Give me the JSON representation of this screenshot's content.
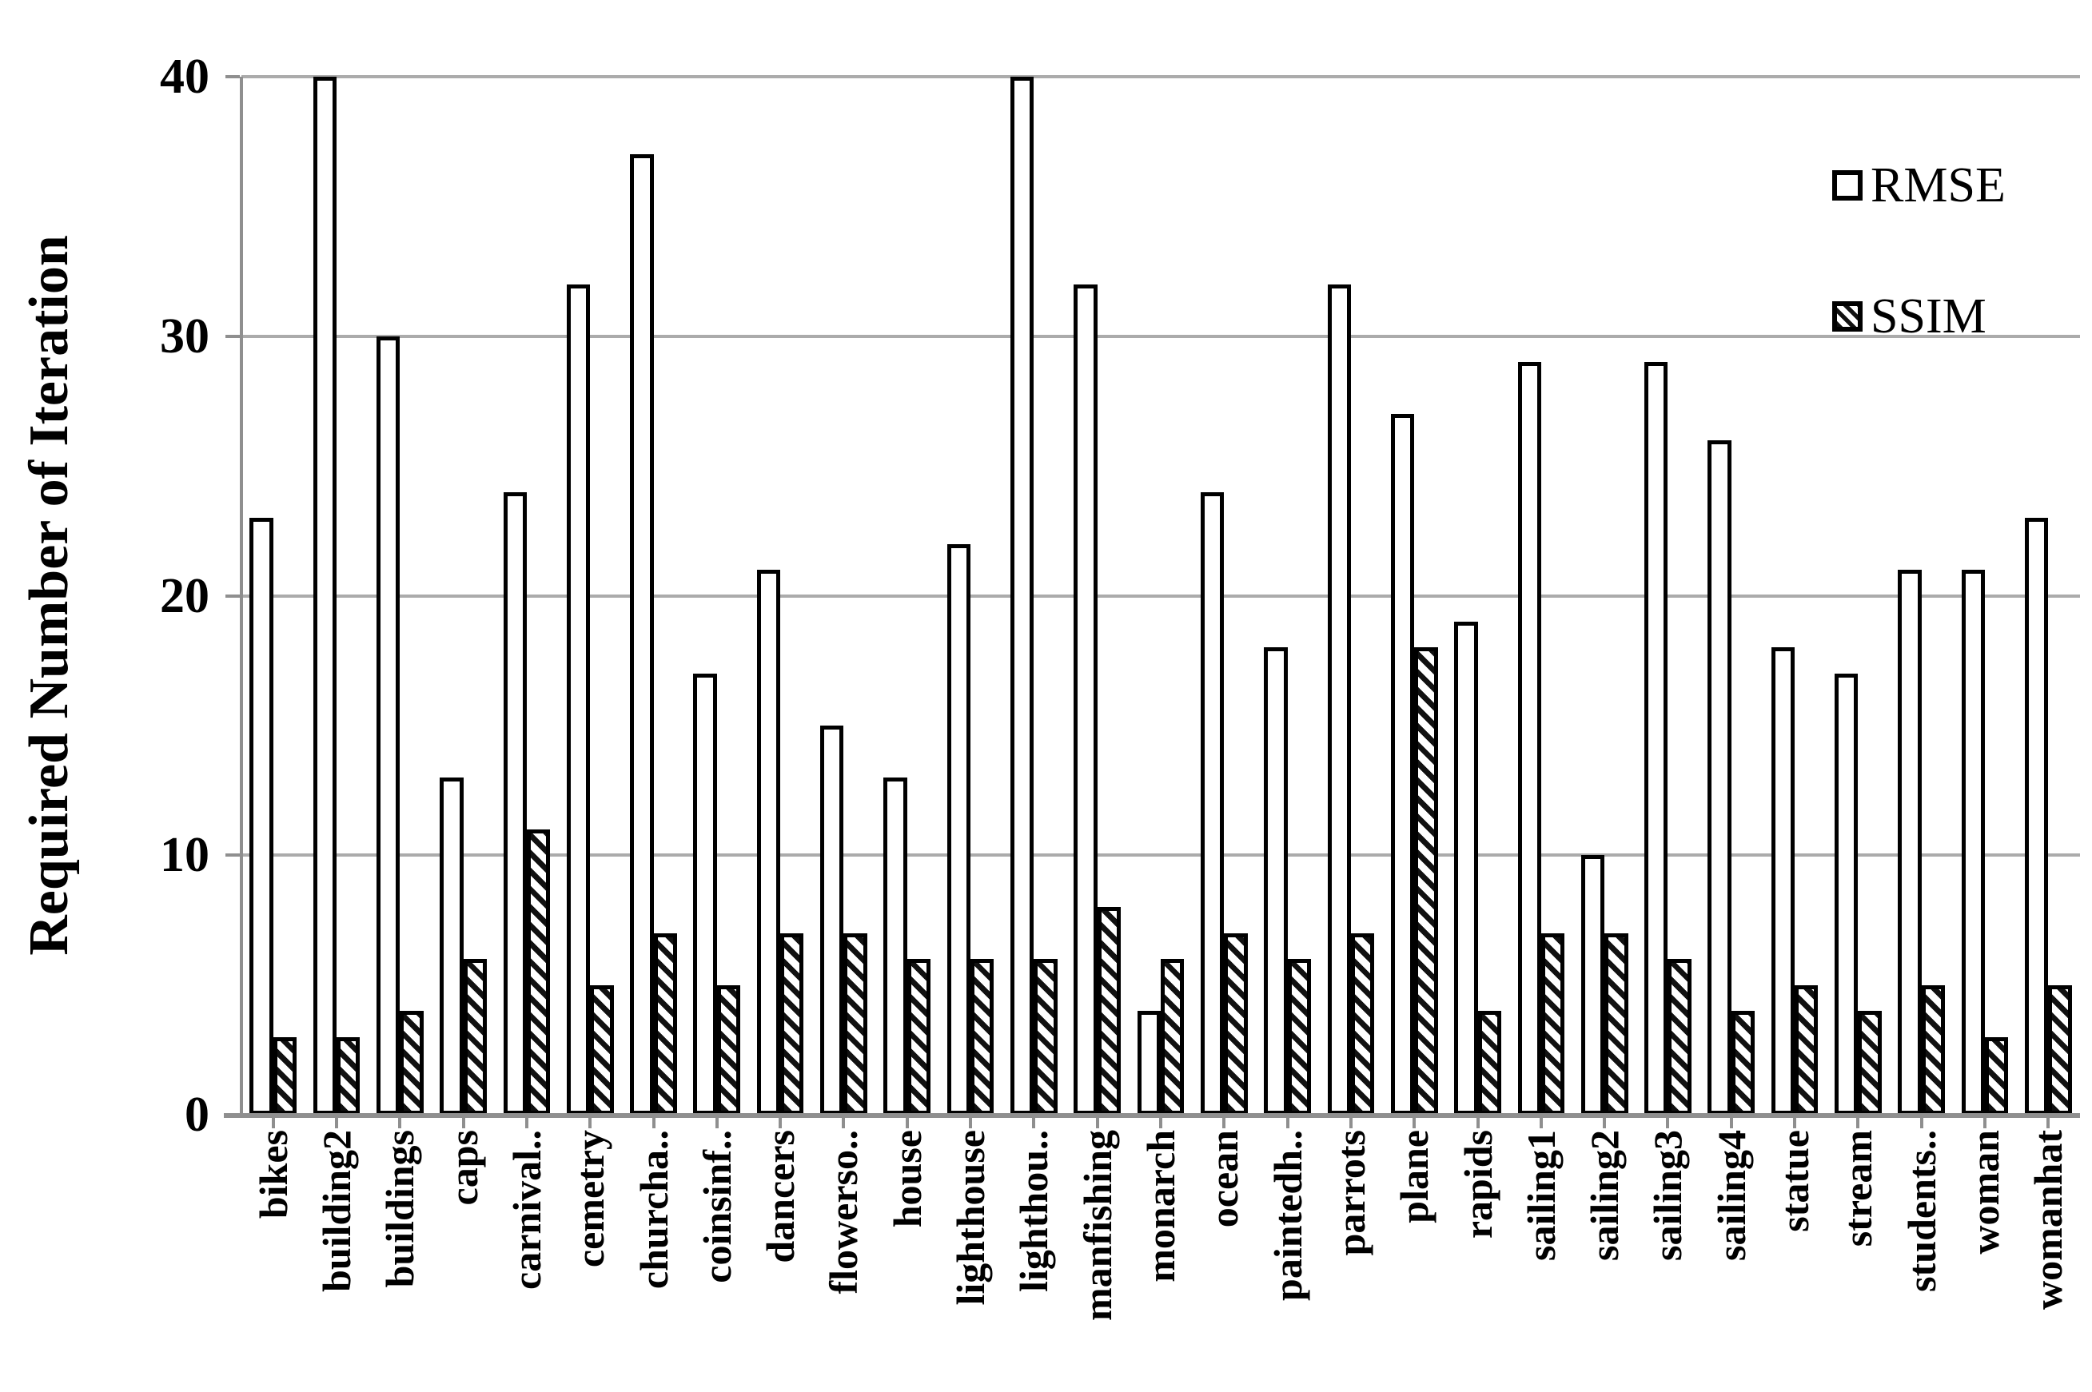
{
  "chart_data": {
    "type": "bar",
    "title": "",
    "xlabel": "",
    "ylabel": "Required Number of Iteration",
    "ylim": [
      0,
      40
    ],
    "yticks": [
      40,
      30,
      20,
      10,
      0
    ],
    "grid": true,
    "legend_position": "top-right",
    "categories": [
      "bikes",
      "building2",
      "buildings",
      "caps",
      "carnival..",
      "cemetry",
      "churcha..",
      "coinsinf..",
      "dancers",
      "flowerso..",
      "house",
      "lighthouse",
      "lighthou..",
      "manfishing",
      "monarch",
      "ocean",
      "paintedh..",
      "parrots",
      "plane",
      "rapids",
      "sailing1",
      "sailing2",
      "sailing3",
      "sailing4",
      "statue",
      "stream",
      "students..",
      "woman",
      "womanhat"
    ],
    "series": [
      {
        "name": "RMSE",
        "fill": "white-outline",
        "values": [
          23,
          40,
          30,
          13,
          24,
          32,
          37,
          17,
          21,
          15,
          13,
          22,
          40,
          32,
          4,
          24,
          18,
          32,
          27,
          19,
          29,
          10,
          29,
          26,
          18,
          17,
          21,
          21,
          23
        ]
      },
      {
        "name": "SSIM",
        "fill": "diagonal-hatch",
        "values": [
          3,
          3,
          4,
          6,
          11,
          5,
          7,
          5,
          7,
          7,
          6,
          6,
          6,
          8,
          6,
          7,
          6,
          7,
          18,
          4,
          7,
          7,
          6,
          4,
          5,
          4,
          5,
          3,
          5
        ]
      }
    ]
  },
  "colors": {
    "background": "#ffffff",
    "text": "#000000",
    "bar_border": "#000000",
    "rmse_fill": "#ffffff",
    "ssim_hatch": "#111111",
    "gridline": "#ababab",
    "axis_line": "#8f8f8f"
  }
}
